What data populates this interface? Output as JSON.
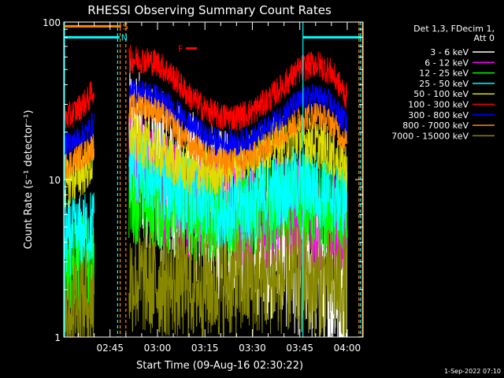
{
  "chart_data": {
    "type": "line",
    "title": "RHESSI Observing Summary Count Rates",
    "xlabel": "Start Time (09-Aug-16 02:30:22)",
    "ylabel": "Count Rate (s⁻¹ detector⁻¹)",
    "y_scale": "log",
    "ylim": [
      1,
      100
    ],
    "xlim_minutes": [
      150.37,
      245.0
    ],
    "x_ticks": [
      {
        "minutes": 165,
        "label": "02:45"
      },
      {
        "minutes": 180,
        "label": "03:00"
      },
      {
        "minutes": 195,
        "label": "03:15"
      },
      {
        "minutes": 210,
        "label": "03:30"
      },
      {
        "minutes": 225,
        "label": "03:45"
      },
      {
        "minutes": 240,
        "label": "04:00"
      }
    ],
    "y_ticks": [
      {
        "value": 1,
        "label": "1"
      },
      {
        "value": 10,
        "label": "10"
      },
      {
        "value": 100,
        "label": "100"
      }
    ],
    "legend_placement": "right",
    "legend_header": [
      "Det 1,3, FDecim 1,",
      "Att 0"
    ],
    "series": [
      {
        "name": "3 - 6 keV",
        "color": "#ffffff",
        "x": [
          150.4,
          153,
          158,
          160,
          161,
          168,
          171,
          175,
          180,
          185,
          190,
          195,
          200,
          205,
          210,
          215,
          220,
          225,
          230,
          235,
          240,
          242.5
        ],
        "y": [
          null,
          null,
          null,
          null,
          null,
          null,
          17,
          14,
          11,
          9,
          8,
          7,
          6,
          5.5,
          5,
          4.5,
          4,
          3.5,
          3,
          2.5,
          2,
          null
        ]
      },
      {
        "name": "6 - 12 keV",
        "color": "#ff00ff",
        "x": [
          150.4,
          160,
          161,
          168,
          171,
          175,
          180,
          185,
          190,
          195,
          200,
          205,
          210,
          215,
          220,
          225,
          230,
          235,
          240,
          242.5
        ],
        "y": [
          null,
          null,
          null,
          null,
          16,
          12,
          9,
          8,
          7,
          8,
          7,
          6.5,
          6,
          6,
          6.5,
          6,
          5.5,
          5,
          5,
          null
        ]
      },
      {
        "name": "12 - 25 keV",
        "color": "#00ff00",
        "x": [
          150.4,
          153,
          158,
          160,
          161,
          168,
          171,
          175,
          180,
          185,
          190,
          195,
          200,
          205,
          210,
          215,
          220,
          225,
          230,
          235,
          240,
          242.5
        ],
        "y": [
          2.8,
          2.9,
          3.0,
          3.2,
          null,
          null,
          8,
          7.5,
          7,
          6.5,
          6,
          5.8,
          5.8,
          6,
          6.5,
          7,
          7.5,
          7.5,
          7,
          6.5,
          6,
          null
        ]
      },
      {
        "name": "25 - 50 keV",
        "color": "#00ffff",
        "x": [
          150.4,
          153,
          158,
          160,
          161,
          168,
          171,
          175,
          180,
          185,
          190,
          195,
          200,
          205,
          210,
          215,
          220,
          225,
          230,
          235,
          240,
          242.5
        ],
        "y": [
          4.2,
          4.4,
          4.8,
          5.2,
          null,
          null,
          13,
          11,
          10,
          9,
          8,
          7,
          6.5,
          6.5,
          7,
          8,
          9,
          9.5,
          9,
          8,
          7.5,
          null
        ]
      },
      {
        "name": "50 - 100 keV",
        "color": "#dddd00",
        "x": [
          150.4,
          153,
          158,
          160,
          161,
          168,
          171,
          175,
          180,
          185,
          190,
          195,
          200,
          205,
          210,
          215,
          220,
          225,
          230,
          235,
          240,
          242.5
        ],
        "y": [
          9,
          10,
          12,
          13,
          null,
          null,
          19,
          17,
          15,
          13,
          11.5,
          11,
          11.5,
          13,
          15,
          17,
          18,
          18,
          17,
          15,
          12,
          null
        ]
      },
      {
        "name": "100 - 300 keV",
        "color": "#ff0000",
        "x": [
          150.4,
          153,
          158,
          160,
          161,
          168,
          171,
          175,
          180,
          185,
          190,
          195,
          200,
          205,
          210,
          215,
          220,
          225,
          230,
          235,
          240,
          242.5
        ],
        "y": [
          24,
          26,
          32,
          38,
          null,
          null,
          58,
          58,
          55,
          45,
          34,
          28,
          25,
          25,
          27,
          32,
          40,
          50,
          55,
          48,
          33,
          null
        ]
      },
      {
        "name": "300 - 800 keV",
        "color": "#0000ff",
        "x": [
          150.4,
          153,
          158,
          160,
          161,
          168,
          171,
          175,
          180,
          185,
          190,
          195,
          200,
          205,
          210,
          215,
          220,
          225,
          230,
          235,
          240,
          242.5
        ],
        "y": [
          16,
          17,
          20,
          23,
          null,
          null,
          35,
          36,
          33,
          28,
          22,
          19,
          17,
          17,
          18,
          21,
          26,
          31,
          34,
          30,
          22,
          null
        ]
      },
      {
        "name": "800 - 7000 keV",
        "color": "#ff8800",
        "x": [
          150.4,
          153,
          158,
          160,
          161,
          168,
          171,
          175,
          180,
          185,
          190,
          195,
          200,
          205,
          210,
          215,
          220,
          225,
          230,
          235,
          240,
          242.5
        ],
        "y": [
          12,
          13,
          15,
          17,
          null,
          null,
          28,
          30,
          27,
          22,
          17,
          14.5,
          13,
          13,
          14,
          16.5,
          20,
          24,
          26,
          23,
          17,
          null
        ]
      },
      {
        "name": "7000 - 15000 keV",
        "color": "#888800",
        "x": [
          150.4,
          153,
          158,
          160,
          161,
          168,
          171,
          175,
          180,
          185,
          190,
          195,
          200,
          205,
          210,
          215,
          220,
          225,
          230,
          235,
          240,
          242.5
        ],
        "y": [
          1.7,
          1.7,
          1.7,
          1.7,
          null,
          null,
          2.3,
          2.3,
          2.2,
          2.2,
          2.1,
          2.1,
          2.1,
          2.2,
          2.2,
          2.3,
          2.3,
          2.3,
          2.2,
          2.2,
          2.1,
          null
        ]
      }
    ],
    "annotations": [
      {
        "label": "S",
        "color": "#ff8800",
        "x_range": [
          150.4,
          168.5
        ],
        "y": 94
      },
      {
        "label": "N",
        "color": "#00ffff",
        "x_range": [
          150.4,
          168.0
        ],
        "y": 80
      },
      {
        "label": "F",
        "color": "#ff0000",
        "x_range": [
          189.0,
          192.5
        ],
        "y": 68
      },
      {
        "label": "",
        "color": "#00ffff",
        "x_range": [
          226.0,
          244.5
        ],
        "y": 80
      }
    ],
    "vlines": [
      {
        "minutes": 150.6,
        "color": "#00ffff",
        "dash": false
      },
      {
        "minutes": 167.4,
        "color": "#00ffff",
        "dash": true
      },
      {
        "minutes": 168.2,
        "color": "#ff8800",
        "dash": true
      },
      {
        "minutes": 170.0,
        "color": "#ff8800",
        "dash": true
      },
      {
        "minutes": 226.0,
        "color": "#00ffff",
        "dash": false
      },
      {
        "minutes": 243.7,
        "color": "#ff8800",
        "dash": true
      },
      {
        "minutes": 244.2,
        "color": "#00ffff",
        "dash": true
      },
      {
        "minutes": 244.8,
        "color": "#ff8800",
        "dash": false
      }
    ],
    "gap_minutes": [
      161.0,
      168.5
    ]
  },
  "footer": {
    "timestamp": "1-Sep-2022 07:10"
  }
}
